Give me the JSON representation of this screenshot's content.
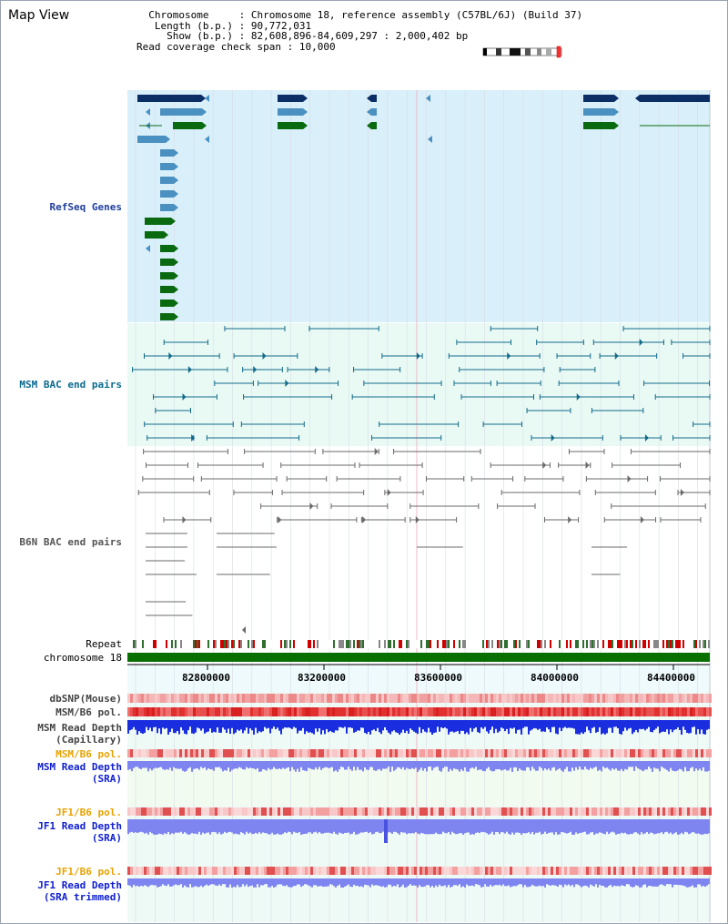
{
  "view": {
    "title": "Map View"
  },
  "info": {
    "chromosome_key": "Chromosome",
    "chromosome_val": "Chromosome 18, reference assembly (C57BL/6J) (Build 37)",
    "length_key": "Length (b.p.)",
    "length_val": "90,772,031",
    "show_key": "Show (b.p.)",
    "show_val": "82,608,896-84,609,297 : 2,000,402 bp",
    "coverage_key": "Read coverage check span",
    "coverage_val": "10,000"
  },
  "tracks": {
    "refseq": "RefSeq Genes",
    "msm_bac": "MSM BAC end pairs",
    "b6n_bac": "B6N BAC end pairs",
    "repeat": "Repeat",
    "chromosome": "chromosome 18",
    "dbsnp": "dbSNP(Mouse)",
    "msm_b6_pol_1": "MSM/B6 pol.",
    "msm_depth_cap_1": "MSM Read Depth",
    "msm_depth_cap_2": "(Capillary)",
    "msm_b6_pol_2": "MSM/B6 pol.",
    "msm_depth_sra_1": "MSM Read Depth",
    "msm_depth_sra_2": "(SRA)",
    "jf1_b6_pol_1": "JF1/B6 pol.",
    "jf1_depth_sra_1": "JF1 Read Depth",
    "jf1_depth_sra_2": "(SRA)",
    "jf1_b6_pol_2": "JF1/B6 pol.",
    "jf1_depth_trim_1": "JF1 Read Depth",
    "jf1_depth_trim_2": "(SRA trimmed)"
  },
  "axis": {
    "ticks": [
      "82800000",
      "83200000",
      "83600000",
      "84000000",
      "84400000"
    ]
  },
  "colors": {
    "refseq_bg": "#d9effa",
    "msm_bg": "#e9faf5",
    "navy": "#0b2e66",
    "lightblue": "#4a90c0",
    "green": "#0a6a10",
    "teal": "#136a8a",
    "gray": "#6a6a6a",
    "chrom_green": "#077000",
    "depth_blue": "#1a2ee0",
    "depth_light": "#7f85f0"
  }
}
